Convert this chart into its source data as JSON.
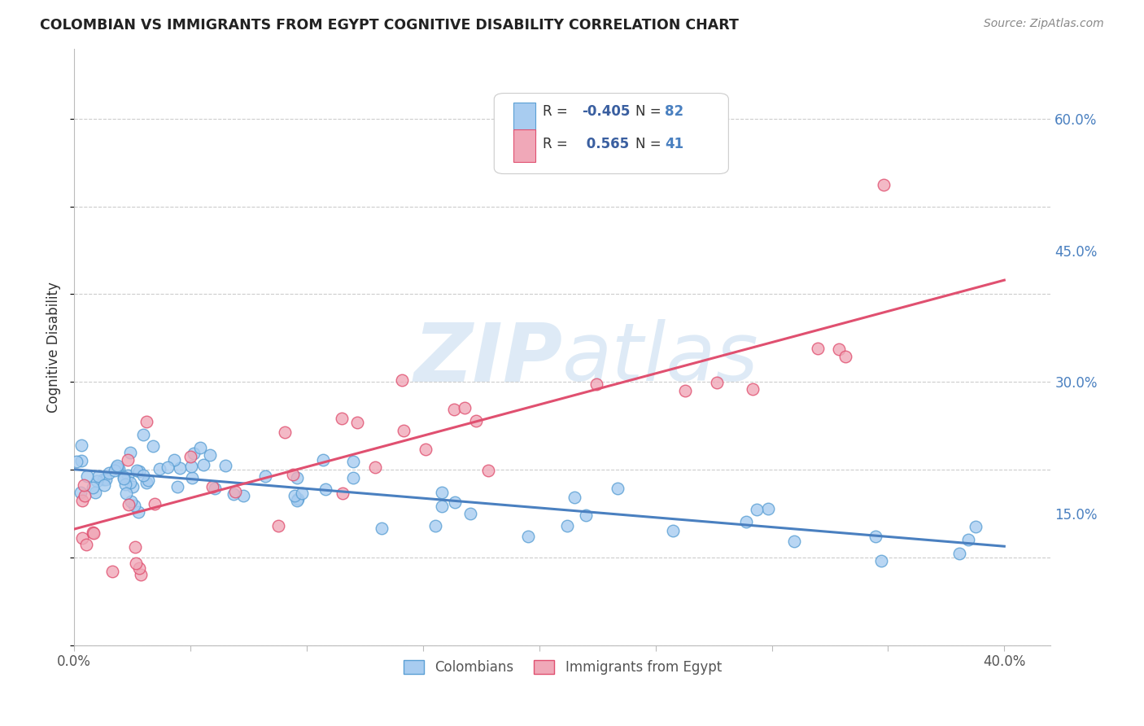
{
  "title": "COLOMBIAN VS IMMIGRANTS FROM EGYPT COGNITIVE DISABILITY CORRELATION CHART",
  "source": "Source: ZipAtlas.com",
  "ylabel": "Cognitive Disability",
  "xlim": [
    0.0,
    0.42
  ],
  "ylim": [
    0.0,
    0.68
  ],
  "xtick_vals": [
    0.0,
    0.05,
    0.1,
    0.15,
    0.2,
    0.25,
    0.3,
    0.35,
    0.4
  ],
  "xtick_show_labels": [
    0.0,
    0.4
  ],
  "ytick_right_labels": [
    "15.0%",
    "30.0%",
    "45.0%",
    "60.0%"
  ],
  "ytick_right_vals": [
    0.15,
    0.3,
    0.45,
    0.6
  ],
  "colombians_R": -0.405,
  "colombians_N": 82,
  "egypt_R": 0.565,
  "egypt_N": 41,
  "colombian_color": "#a8ccf0",
  "egypt_color": "#f0a8b8",
  "colombian_edge_color": "#5a9fd4",
  "egypt_edge_color": "#e05070",
  "colombian_line_color": "#4a80c0",
  "egypt_line_color": "#e05070",
  "watermark_color": "#c8ddf0",
  "background_color": "#ffffff",
  "grid_color": "#cccccc",
  "title_color": "#222222",
  "source_color": "#888888",
  "axis_label_color": "#333333",
  "tick_label_color": "#555555",
  "right_tick_color": "#4a80c0",
  "legend_text_color": "#333333",
  "legend_R_color": "#3a5fa0",
  "legend_N_color": "#4a80c0"
}
